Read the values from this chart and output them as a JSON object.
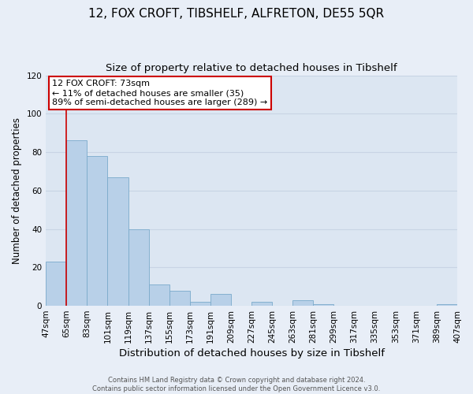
{
  "title": "12, FOX CROFT, TIBSHELF, ALFRETON, DE55 5QR",
  "subtitle": "Size of property relative to detached houses in Tibshelf",
  "xlabel": "Distribution of detached houses by size in Tibshelf",
  "ylabel": "Number of detached properties",
  "bar_values": [
    23,
    86,
    78,
    67,
    40,
    11,
    8,
    2,
    6,
    0,
    2,
    0,
    3,
    1,
    0,
    0,
    0,
    0,
    0,
    1
  ],
  "bar_labels": [
    "47sqm",
    "65sqm",
    "83sqm",
    "101sqm",
    "119sqm",
    "137sqm",
    "155sqm",
    "173sqm",
    "191sqm",
    "209sqm",
    "227sqm",
    "245sqm",
    "263sqm",
    "281sqm",
    "299sqm",
    "317sqm",
    "335sqm",
    "353sqm",
    "371sqm",
    "389sqm",
    "407sqm"
  ],
  "bar_color": "#b8d0e8",
  "bar_edge_color": "#7aaacb",
  "vline_x": 1,
  "vline_color": "#cc0000",
  "ylim": [
    0,
    120
  ],
  "yticks": [
    0,
    20,
    40,
    60,
    80,
    100,
    120
  ],
  "annotation_box_text": "12 FOX CROFT: 73sqm\n← 11% of detached houses are smaller (35)\n89% of semi-detached houses are larger (289) →",
  "footer_text": "Contains HM Land Registry data © Crown copyright and database right 2024.\nContains public sector information licensed under the Open Government Licence v3.0.",
  "background_color": "#e8eef7",
  "plot_bg_color": "#dce6f2",
  "grid_color": "#c8d4e4",
  "title_fontsize": 11,
  "subtitle_fontsize": 9.5,
  "tick_fontsize": 7.5,
  "ylabel_fontsize": 8.5,
  "xlabel_fontsize": 9.5
}
